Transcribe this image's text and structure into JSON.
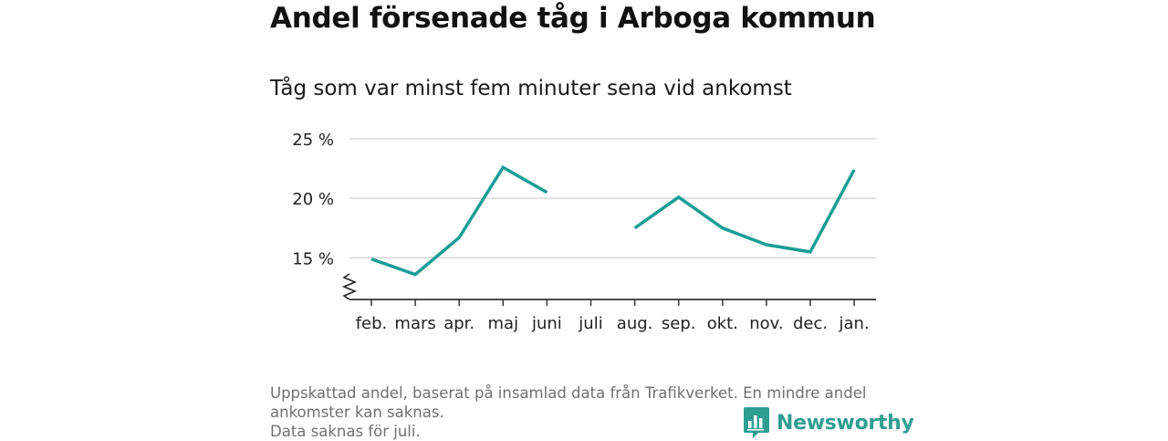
{
  "title": "Andel försenade tåg i Arboga kommun",
  "subtitle": "Tåg som var minst fem minuter sena vid ankomst",
  "footnote": {
    "line1": "Uppskattad andel, baserat på insamlad data från Trafikverket. En mindre andel ankomster kan saknas.",
    "line2": "Data saknas för juli."
  },
  "brand": {
    "name": "Newsworthy",
    "icon": "bar-chart-logo-icon",
    "color": "#2f9e92"
  },
  "chart_data": {
    "type": "line",
    "categories": [
      "feb.",
      "mars",
      "apr.",
      "maj",
      "juni",
      "juli",
      "aug.",
      "sep.",
      "okt.",
      "nov.",
      "dec.",
      "jan."
    ],
    "series": [
      {
        "values": [
          14.9,
          13.6,
          16.7,
          22.6,
          20.5,
          null,
          17.5,
          20.1,
          17.5,
          16.1,
          15.5,
          22.4
        ],
        "color": "#1a9e96"
      }
    ],
    "yticks": [
      15,
      20,
      25
    ],
    "ytick_labels": [
      "15 %",
      "20 %",
      "25 %"
    ],
    "ylim": [
      11.5,
      25
    ],
    "y_axis_break": true,
    "grid": "horizontal",
    "xlabel": "",
    "ylabel": ""
  }
}
